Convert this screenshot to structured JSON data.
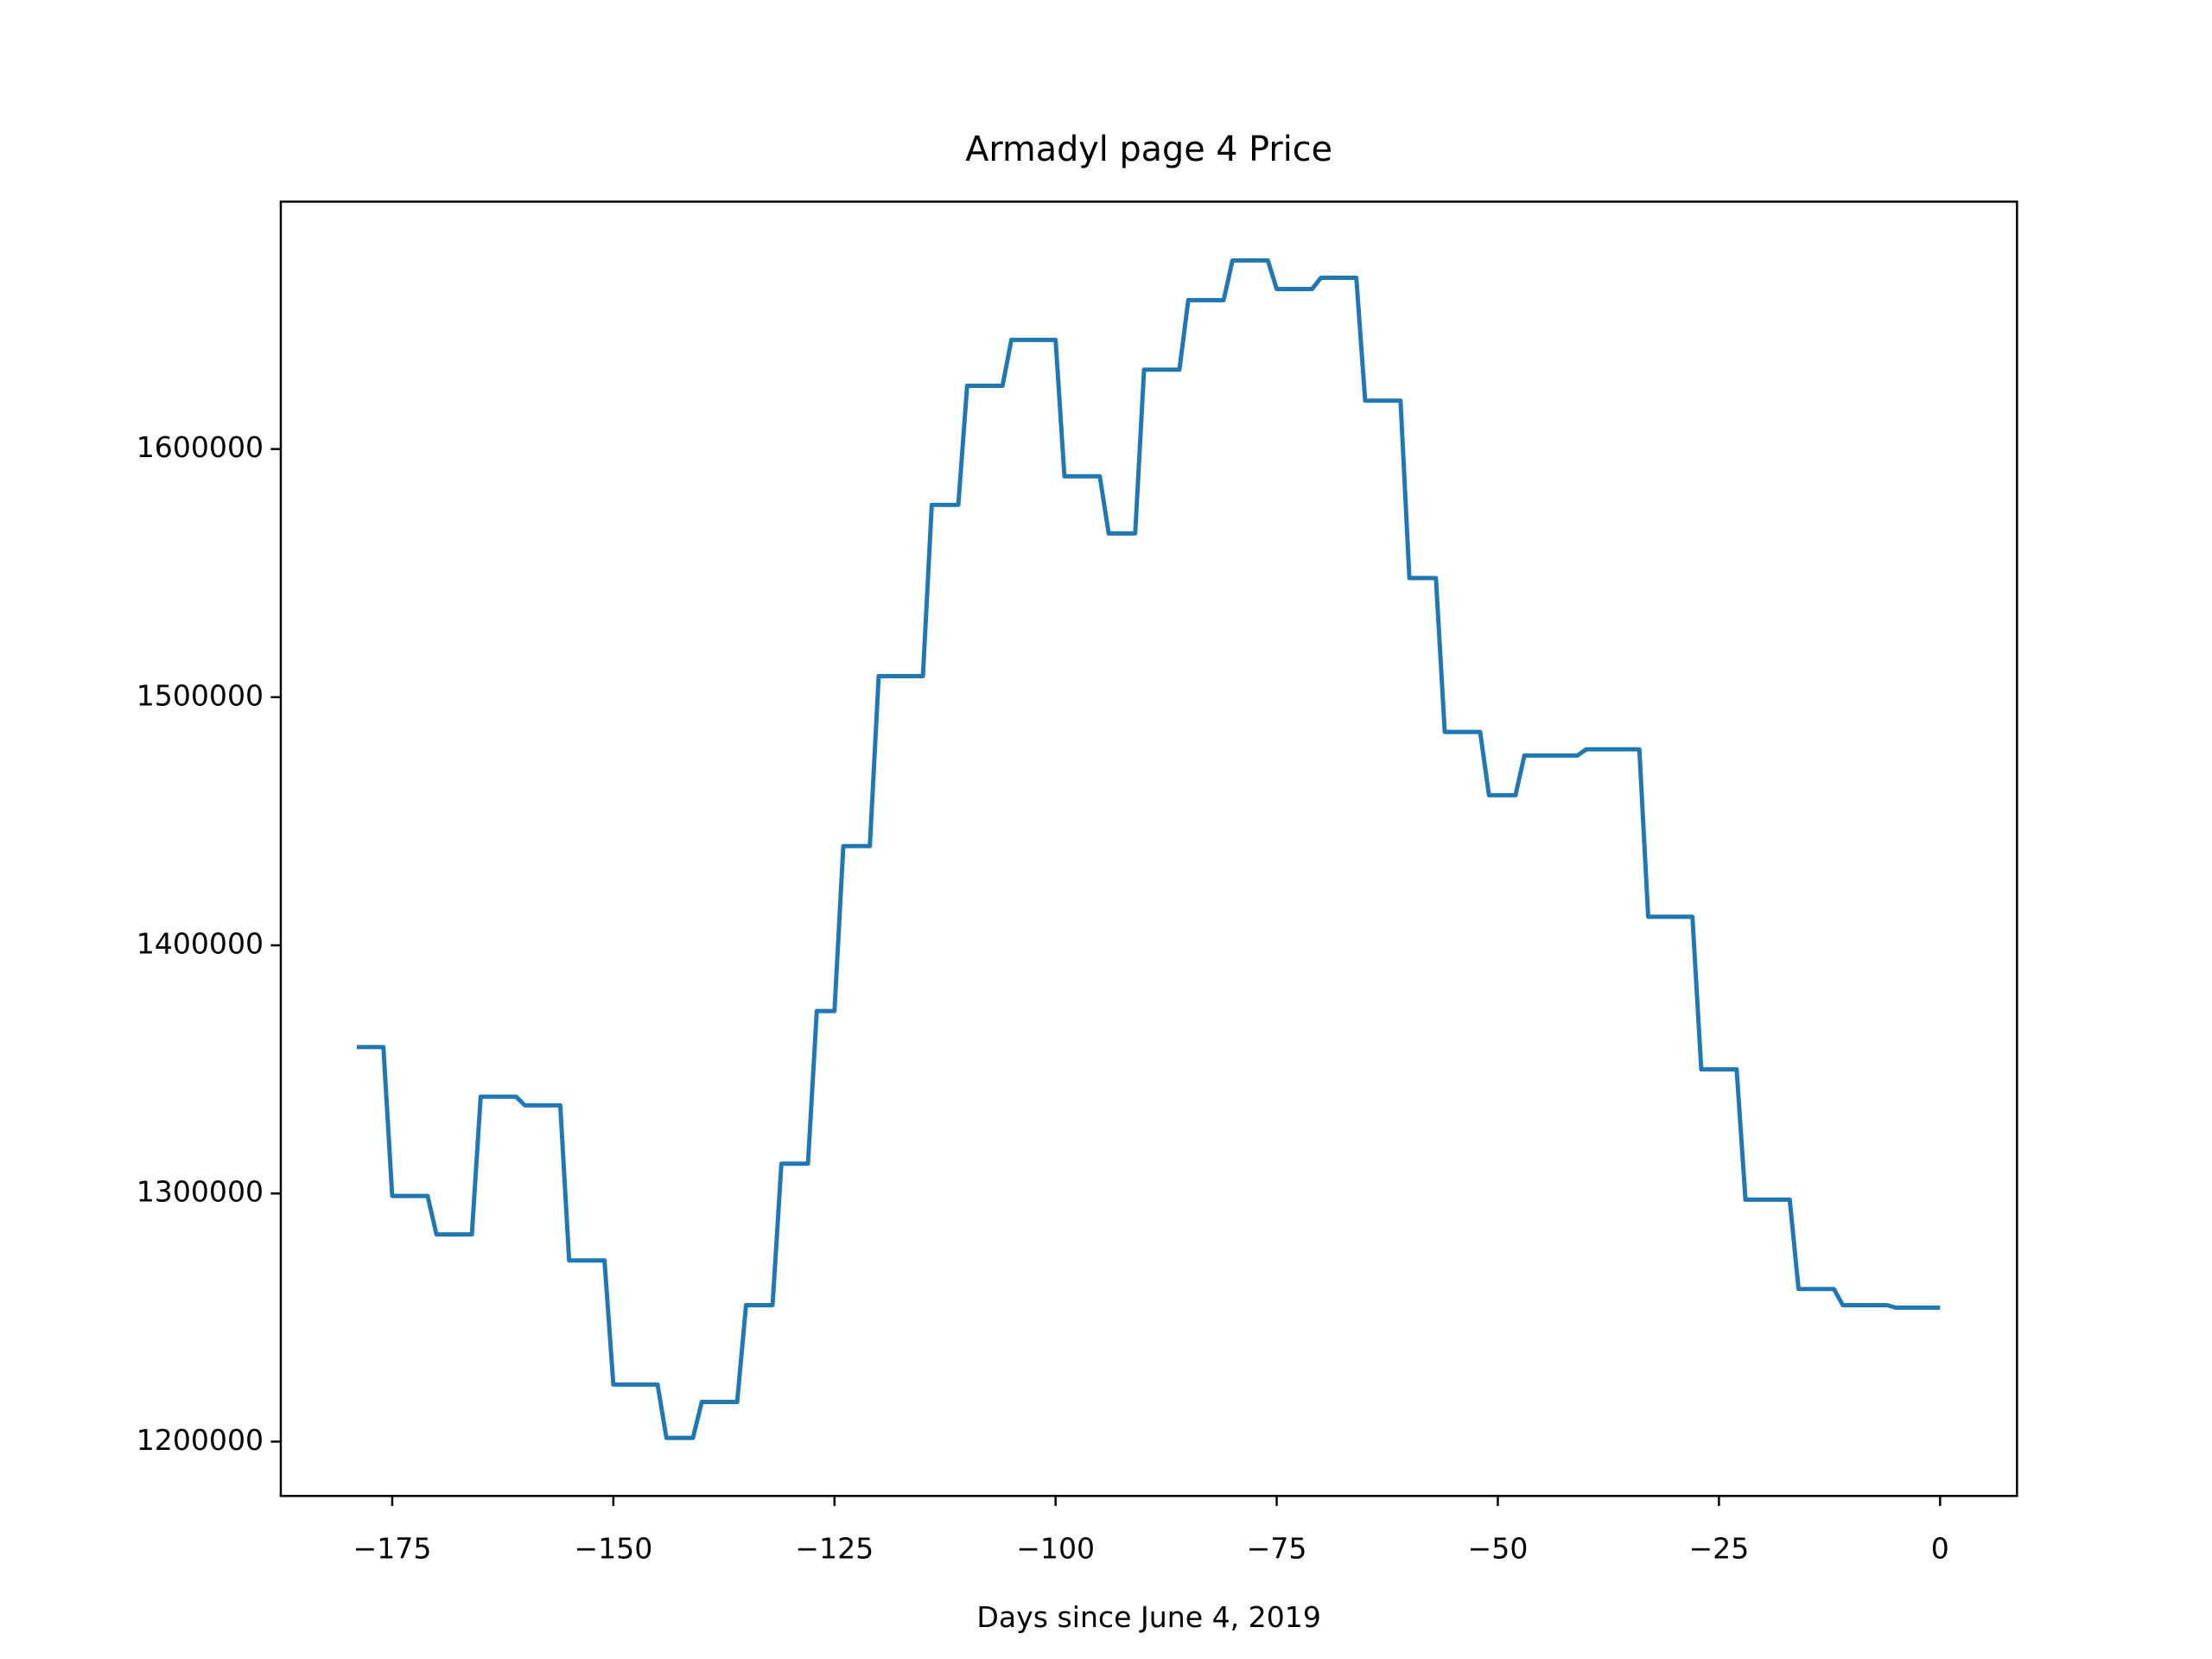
{
  "chart_data": {
    "type": "line",
    "title": "Armadyl page 4 Price",
    "xlabel": "Days since June 4, 2019",
    "x": [
      -179,
      -176,
      -175,
      -171,
      -170,
      -166,
      -165,
      -161,
      -160,
      -156,
      -155,
      -151,
      -150,
      -145,
      -144,
      -141,
      -140,
      -136,
      -135,
      -132,
      -131,
      -128,
      -127,
      -125,
      -124,
      -121,
      -120,
      -115,
      -114,
      -111,
      -110,
      -106,
      -105,
      -100,
      -99,
      -95,
      -94,
      -91,
      -90,
      -86,
      -85,
      -81,
      -80,
      -76,
      -75,
      -71,
      -70,
      -66,
      -65,
      -61,
      -60,
      -57,
      -56,
      -52,
      -51,
      -48,
      -47,
      -41,
      -40,
      -34,
      -33,
      -28,
      -27,
      -23,
      -22,
      -17,
      -16,
      -12,
      -11,
      -6,
      -5,
      0
    ],
    "series": [
      {
        "name": "Price",
        "color": "#1f77b4",
        "values": [
          1359000,
          1359000,
          1299000,
          1299000,
          1283500,
          1283500,
          1339000,
          1339000,
          1335500,
          1335500,
          1273000,
          1273000,
          1223000,
          1223000,
          1201500,
          1201500,
          1216000,
          1216000,
          1255000,
          1255000,
          1312000,
          1312000,
          1373500,
          1373500,
          1440000,
          1440000,
          1508500,
          1508500,
          1577500,
          1577500,
          1625500,
          1625500,
          1644000,
          1644000,
          1589000,
          1589000,
          1566000,
          1566000,
          1632000,
          1632000,
          1660000,
          1660000,
          1676000,
          1676000,
          1664500,
          1664500,
          1669000,
          1669000,
          1619500,
          1619500,
          1548000,
          1548000,
          1486000,
          1486000,
          1460500,
          1460500,
          1476500,
          1476500,
          1479000,
          1479000,
          1411500,
          1411500,
          1350000,
          1350000,
          1297500,
          1297500,
          1261500,
          1261500,
          1255000,
          1255000,
          1254000,
          1254000
        ]
      }
    ],
    "xlim": [
      -187.6,
      8.7
    ],
    "xticks": [
      -175,
      -150,
      -125,
      -100,
      -75,
      -50,
      -25,
      0
    ],
    "ylim": [
      1178100,
      1699700
    ],
    "yticks": [
      1200000,
      1300000,
      1400000,
      1500000,
      1600000
    ],
    "grid": false
  }
}
